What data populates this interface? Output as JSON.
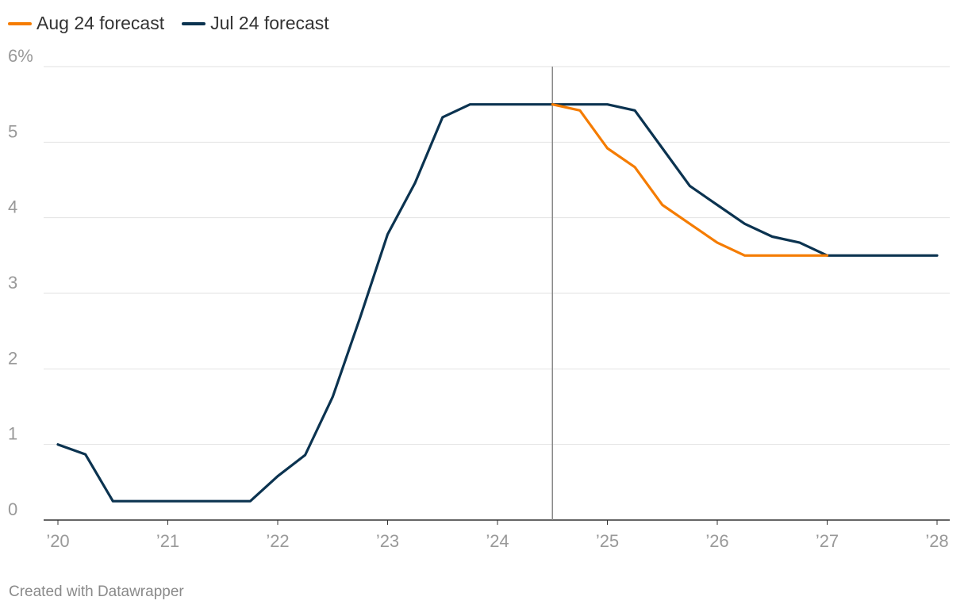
{
  "legend": [
    {
      "label": "Aug 24 forecast",
      "color": "#f57c00"
    },
    {
      "label": "Jul 24 forecast",
      "color": "#0b3350"
    }
  ],
  "credit": "Created with Datawrapper",
  "chart_data": {
    "type": "line",
    "title": "",
    "xlabel": "",
    "ylabel": "",
    "xlim": [
      2020,
      2028
    ],
    "ylim": [
      0,
      6
    ],
    "x_ticks": [
      {
        "value": 2020,
        "label": "’20"
      },
      {
        "value": 2021,
        "label": "’21"
      },
      {
        "value": 2022,
        "label": "’22"
      },
      {
        "value": 2023,
        "label": "’23"
      },
      {
        "value": 2024,
        "label": "’24"
      },
      {
        "value": 2025,
        "label": "’25"
      },
      {
        "value": 2026,
        "label": "’26"
      },
      {
        "value": 2027,
        "label": "’27"
      },
      {
        "value": 2028,
        "label": "’28"
      }
    ],
    "y_ticks": [
      {
        "value": 0,
        "label": "0"
      },
      {
        "value": 1,
        "label": "1"
      },
      {
        "value": 2,
        "label": "2"
      },
      {
        "value": 3,
        "label": "3"
      },
      {
        "value": 4,
        "label": "4"
      },
      {
        "value": 5,
        "label": "5"
      },
      {
        "value": 6,
        "label": "6%"
      }
    ],
    "grid": true,
    "legend_position": "top-left",
    "reference_line_x": 2024.5,
    "series": [
      {
        "name": "Jul 24 forecast",
        "color": "#0b3350",
        "points": [
          [
            2020.0,
            1.0
          ],
          [
            2020.25,
            0.87
          ],
          [
            2020.5,
            0.25
          ],
          [
            2020.75,
            0.25
          ],
          [
            2021.0,
            0.25
          ],
          [
            2021.25,
            0.25
          ],
          [
            2021.5,
            0.25
          ],
          [
            2021.75,
            0.25
          ],
          [
            2022.0,
            0.58
          ],
          [
            2022.25,
            0.86
          ],
          [
            2022.5,
            1.63
          ],
          [
            2022.75,
            2.68
          ],
          [
            2023.0,
            3.78
          ],
          [
            2023.25,
            4.46
          ],
          [
            2023.5,
            5.33
          ],
          [
            2023.75,
            5.5
          ],
          [
            2024.0,
            5.5
          ],
          [
            2024.25,
            5.5
          ],
          [
            2024.5,
            5.5
          ],
          [
            2024.75,
            5.5
          ],
          [
            2025.0,
            5.5
          ],
          [
            2025.25,
            5.42
          ],
          [
            2025.5,
            4.92
          ],
          [
            2025.75,
            4.42
          ],
          [
            2026.0,
            4.17
          ],
          [
            2026.25,
            3.92
          ],
          [
            2026.5,
            3.75
          ],
          [
            2026.75,
            3.67
          ],
          [
            2027.0,
            3.5
          ],
          [
            2027.25,
            3.5
          ],
          [
            2027.5,
            3.5
          ],
          [
            2027.75,
            3.5
          ],
          [
            2028.0,
            3.5
          ]
        ]
      },
      {
        "name": "Aug 24 forecast",
        "color": "#f57c00",
        "points": [
          [
            2024.5,
            5.5
          ],
          [
            2024.75,
            5.42
          ],
          [
            2025.0,
            4.92
          ],
          [
            2025.25,
            4.67
          ],
          [
            2025.5,
            4.17
          ],
          [
            2025.75,
            3.92
          ],
          [
            2026.0,
            3.67
          ],
          [
            2026.25,
            3.5
          ],
          [
            2026.5,
            3.5
          ],
          [
            2026.75,
            3.5
          ],
          [
            2027.0,
            3.5
          ]
        ]
      }
    ]
  }
}
